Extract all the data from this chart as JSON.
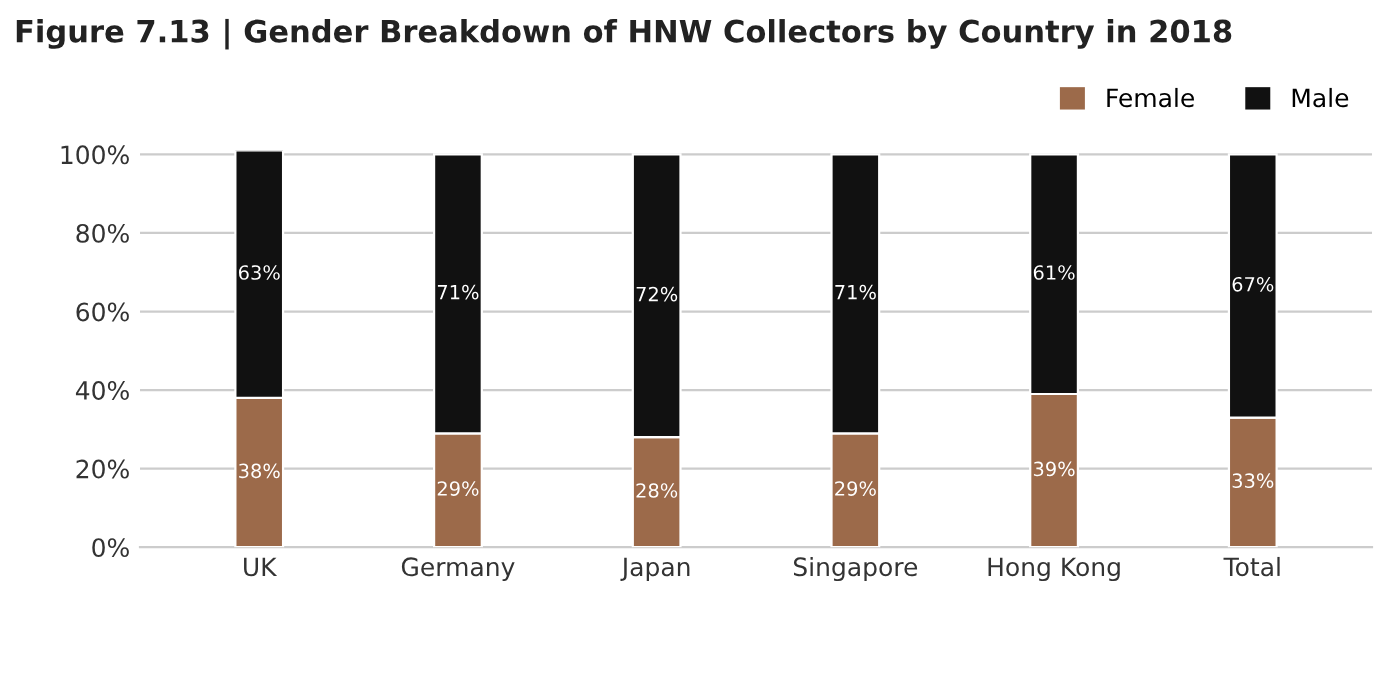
{
  "chart_data": {
    "type": "bar",
    "stacked": true,
    "title": "Figure 7.13 | Gender Breakdown of HNW Collectors by Country in 2018",
    "categories": [
      "UK",
      "Germany",
      "Japan",
      "Singapore",
      "Hong Kong",
      "Total"
    ],
    "series": [
      {
        "name": "Female",
        "color": "#9c6a4a",
        "values": [
          38,
          29,
          28,
          29,
          39,
          33
        ],
        "value_labels": [
          "38%",
          "29%",
          "28%",
          "29%",
          "39%",
          "33%"
        ]
      },
      {
        "name": "Male",
        "color": "#111111",
        "values": [
          63,
          71,
          72,
          71,
          61,
          67
        ],
        "value_labels": [
          "63%",
          "71%",
          "72%",
          "71%",
          "61%",
          "67%"
        ]
      }
    ],
    "ylim": [
      0,
      101
    ],
    "yticks": [
      {
        "value": 0,
        "label": "0%"
      },
      {
        "value": 20,
        "label": "20%"
      },
      {
        "value": 40,
        "label": "40%"
      },
      {
        "value": 60,
        "label": "60%"
      },
      {
        "value": 80,
        "label": "80%"
      },
      {
        "value": 100,
        "label": "100%"
      }
    ],
    "grid": "y",
    "legend": "top right"
  }
}
